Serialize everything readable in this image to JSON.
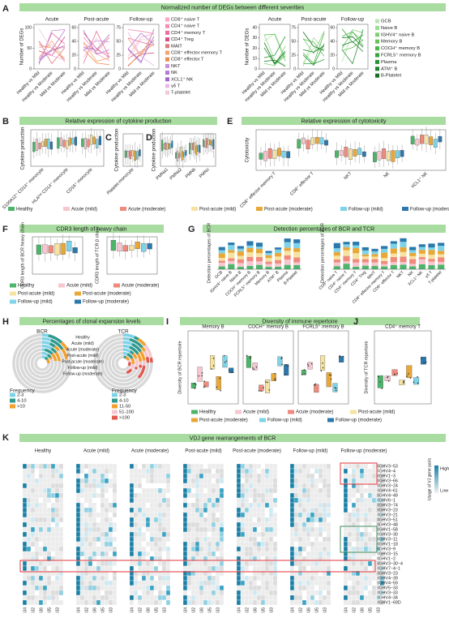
{
  "panel_a": {
    "label": "A",
    "title": "Normalized number of DEGs between different severities",
    "periods": [
      "Acute",
      "Post-acute",
      "Follow-up"
    ],
    "y_label": "Number of DEGs",
    "comparisons": [
      "Healthy vs Mild",
      "Healthy vs Moderate",
      "Mild vs Moderate"
    ],
    "t_yticks": [
      [
        0,
        50,
        100
      ],
      [
        0,
        20,
        40,
        60
      ],
      [
        0,
        25,
        50,
        75
      ]
    ],
    "b_yticks": [
      [
        0,
        10,
        20,
        30,
        40
      ],
      [
        0,
        25,
        50,
        75
      ],
      [
        0,
        20,
        40,
        60
      ]
    ],
    "t_legend": [
      {
        "name": "CD8⁺ naive T",
        "color": "#f7a8c4"
      },
      {
        "name": "CD4⁺ naive T",
        "color": "#f48fb1"
      },
      {
        "name": "CD4⁺ memory T",
        "color": "#ec6d9a"
      },
      {
        "name": "CD4⁺ Treg",
        "color": "#d94f86"
      },
      {
        "name": "MAIT",
        "color": "#e07b7b"
      },
      {
        "name": "CD8⁺ effector memory T",
        "color": "#f3a66b"
      },
      {
        "name": "CD8⁺ effector T",
        "color": "#f08c4a"
      },
      {
        "name": "NKT",
        "color": "#c790d8"
      },
      {
        "name": "NK",
        "color": "#b57bd0"
      },
      {
        "name": "XCL1⁺ NK",
        "color": "#a468c7"
      },
      {
        "name": "γδ T",
        "color": "#e9b8e8"
      },
      {
        "name": "T-platelet",
        "color": "#f1c9d9"
      }
    ],
    "b_legend": [
      {
        "name": "GCB",
        "color": "#b8e6b0"
      },
      {
        "name": "Naive B",
        "color": "#9bdc92"
      },
      {
        "name": "IGHV4⁺ naive B",
        "color": "#7fd075"
      },
      {
        "name": "Memory B",
        "color": "#63c35a"
      },
      {
        "name": "COCH⁺ memory B",
        "color": "#4bb548"
      },
      {
        "name": "FCRL5⁺ memory B",
        "color": "#37a43c"
      },
      {
        "name": "Plasma",
        "color": "#2a9335"
      },
      {
        "name": "ATM⁺ B",
        "color": "#1f812d"
      },
      {
        "name": "B-Platelet",
        "color": "#166e25"
      }
    ]
  },
  "severity_legend": [
    {
      "name": "Healthy",
      "color": "#4db56a"
    },
    {
      "name": "Acute (mild)",
      "color": "#f7c6cf"
    },
    {
      "name": "Acute (moderate)",
      "color": "#ef8a7c"
    },
    {
      "name": "Post-acute (mild)",
      "color": "#f6e3a1"
    },
    {
      "name": "Post-acute (moderate)",
      "color": "#e8a838"
    },
    {
      "name": "Follow-up (mild)",
      "color": "#7fd3e8"
    },
    {
      "name": "Follow-up (moderate)",
      "color": "#2b78ad"
    }
  ],
  "panel_b": {
    "label": "B",
    "title": "Relative expression of cytokine production",
    "y_label": "Cytokine production",
    "categories": [
      "S100A12⁺ CD14⁺ monocyte",
      "HLAˡᵒʷ CD14⁺ monocyte",
      "CD16⁺ monocyte"
    ]
  },
  "panel_c": {
    "label": "C",
    "y_label": "Cytokine production",
    "categories": [
      "Platelet-monocyte"
    ]
  },
  "panel_d": {
    "label": "D",
    "y_label": "Cytokine production",
    "categories": [
      "PMNa1",
      "PMNa2",
      "PMNb",
      "PMNc"
    ]
  },
  "panel_e": {
    "label": "E",
    "title": "Relative expression of cytotoxicity",
    "y_label": "Cytotoxicity",
    "categories": [
      "CD8⁺ effector memory T",
      "CD8⁺ effector T",
      "NKT",
      "NK",
      "XCL1⁺ NK"
    ]
  },
  "panel_f": {
    "label": "F",
    "title": "CDR3 length of heavy chain",
    "y_labels": [
      "CDR3 length of BCR heavy chain",
      "CDR3 length of TCR β chain"
    ]
  },
  "panel_g": {
    "label": "G",
    "title": "Detection percentages of BCR and TCR",
    "y_labels": [
      "Detection percentages of BCR",
      "Detection percentages of TCR"
    ],
    "bcr_categories": [
      "GCB",
      "IGHV4⁺ naive B",
      "Naive B",
      "COCH⁺ memory B",
      "FCRL5⁺ memory B",
      "Memory B",
      "ATM⁺ B",
      "Plasma",
      "B-Platelet"
    ],
    "tcr_categories": [
      "CD8⁺ naive T",
      "CD4⁺ naive T",
      "CD4⁺ memory T",
      "CD4⁺ Treg",
      "MAIT",
      "CD8⁺ effector memory T",
      "CD8⁺ effector T",
      "NKT",
      "NK",
      "XCL1⁺ NK",
      "γδ T",
      "T-platelet"
    ]
  },
  "panel_h": {
    "label": "H",
    "title": "Percentages of clonal expansion levels",
    "bcr": "BCR",
    "tcr": "TCR",
    "rings": [
      "Healthy",
      "Acute (mild)",
      "Acute (moderate)",
      "Post-acute (mild)",
      "Post-acute (moderate)",
      "Follow-up (mild)",
      "Follow-up (moderate)"
    ],
    "frequency_title": "Frequency",
    "bcr_levels": [
      {
        "name": "2-3",
        "color": "#7fd3e8"
      },
      {
        "name": "4-10",
        "color": "#2f9a8e"
      },
      {
        "name": ">10",
        "color": "#f3a02e"
      }
    ],
    "tcr_levels": [
      {
        "name": "2-3",
        "color": "#7fd3e8"
      },
      {
        "name": "4-10",
        "color": "#2f9a8e"
      },
      {
        "name": "11-50",
        "color": "#f3a02e"
      },
      {
        "name": "51-100",
        "color": "#f6c7cf"
      },
      {
        "name": ">100",
        "color": "#e2584e"
      }
    ]
  },
  "panel_i": {
    "label": "I",
    "title": "Diversity of immune repertoire",
    "y_label": "Diversity of BCR repertoire",
    "subsets": [
      "Memory B",
      "COCH⁺ memory B",
      "FCRL5⁺ memory B"
    ]
  },
  "panel_j": {
    "label": "J",
    "subset": "CD4⁺ memory T",
    "y_label": "Diversity of TCR repertoire"
  },
  "panel_k": {
    "label": "K",
    "title": "VDJ gene rearrangements of BCR",
    "groups": [
      "Healthy",
      "Acute (mild)",
      "Acute (moderate)",
      "Post-acute (mild)",
      "Post-acute (moderate)",
      "Follow-up (mild)",
      "Follow-up (moderate)"
    ],
    "j_genes": [
      "IJ4",
      "IJ2",
      "IJ6",
      "IJ5",
      "IJ3"
    ],
    "v_genes": [
      "IGHV3−53",
      "IGHV4−4",
      "IGHV1−3",
      "IGHV3−66",
      "IGHV3−24",
      "IGHV4−61",
      "IGHV4−49",
      "IGHV6−1",
      "IGHV3−74",
      "IGHV3−23",
      "IGHV3−21",
      "IGHV3−51",
      "IGHV3−48",
      "IGHV1−58",
      "IGHV3−30",
      "IGHV3−11",
      "IGHV1−18",
      "IGHV3−9",
      "IGHV3−15",
      "IGHV1−2",
      "IGHV3−30−4",
      "IGHV7−4−1",
      "IGHV3−23",
      "IGHV4−39",
      "IGHV4−59",
      "IGHV5−33",
      "IGHV3−33",
      "IGHV4−34",
      "IGHV1−69D"
    ],
    "legend_title": "Usage of VJ gene pairs",
    "legend_high": "High",
    "legend_low": "Low"
  }
}
